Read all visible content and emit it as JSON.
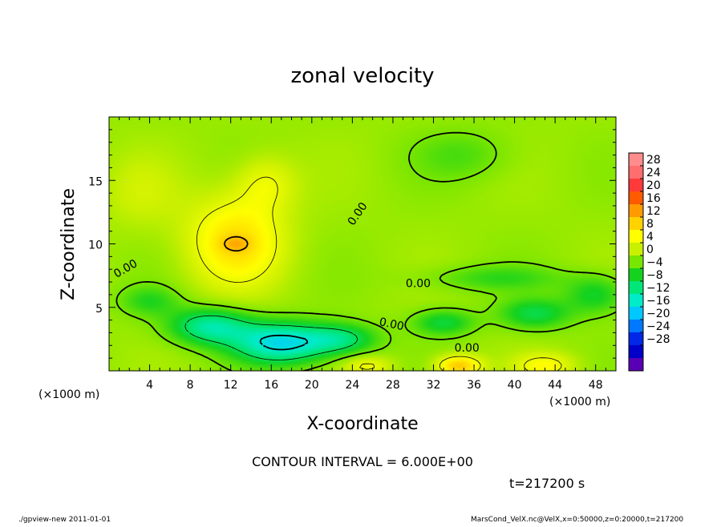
{
  "chart_data": {
    "type": "heatmap",
    "title": "zonal velocity",
    "xlabel": "X-coordinate",
    "ylabel": "Z-coordinate",
    "x_unit": "(×1000 m)",
    "y_unit": "(×1000 m)",
    "xlim": [
      0,
      50
    ],
    "ylim": [
      0,
      20
    ],
    "x_ticks": [
      4,
      8,
      12,
      16,
      20,
      24,
      28,
      32,
      36,
      40,
      44,
      48
    ],
    "y_ticks": [
      5,
      10,
      15
    ],
    "colorbar": {
      "ticks": [
        28,
        24,
        20,
        16,
        12,
        8,
        4,
        0,
        -4,
        -8,
        -12,
        -16,
        -20,
        -24,
        -28
      ],
      "tick_labels": [
        "28",
        "24",
        "20",
        "16",
        "12",
        "8",
        "4",
        "0",
        "−4",
        "−8",
        "−12",
        "−16",
        "−20",
        "−24",
        "−28"
      ],
      "colors": [
        "#ff8c8c",
        "#ff6e6e",
        "#ff3a3a",
        "#ff5a00",
        "#ff9a00",
        "#ffd200",
        "#ffff00",
        "#c8f000",
        "#78e600",
        "#14d21e",
        "#00e678",
        "#00ebc8",
        "#00c8ff",
        "#0078ff",
        "#0028e6",
        "#0000c8",
        "#5a00b4"
      ]
    },
    "contour_interval": "6.000E+00",
    "contour_labels": [
      {
        "text": "0.00",
        "x": 1.8,
        "z": 7.8,
        "angle": -30
      },
      {
        "text": "0.00",
        "x": 24.8,
        "z": 12.2,
        "angle": -55
      },
      {
        "text": "0.00",
        "x": 30.5,
        "z": 6.6,
        "angle": 0
      },
      {
        "text": "0.00",
        "x": 27.8,
        "z": 3.4,
        "angle": 12
      },
      {
        "text": "0.00",
        "x": 35.3,
        "z": 1.5,
        "angle": 0
      }
    ],
    "fields": {
      "background": 1.5,
      "features": [
        {
          "x": 12.5,
          "z": 10.2,
          "sx": 4.8,
          "sz": 3.6,
          "amp": 8.5
        },
        {
          "x": 15.5,
          "z": 14.8,
          "sx": 3.0,
          "sz": 2.2,
          "amp": 4.5
        },
        {
          "x": 12.5,
          "z": 10.0,
          "sx": 1.4,
          "sz": 0.6,
          "amp": 4.0
        },
        {
          "x": 17.0,
          "z": 2.2,
          "sx": 4.8,
          "sz": 1.6,
          "amp": -14.5
        },
        {
          "x": 10.0,
          "z": 3.5,
          "sx": 4.0,
          "sz": 1.4,
          "amp": -11.0
        },
        {
          "x": 23.0,
          "z": 2.5,
          "sx": 3.5,
          "sz": 1.2,
          "amp": -8.0
        },
        {
          "x": 33.0,
          "z": 3.8,
          "sx": 3.0,
          "sz": 1.0,
          "amp": -6.5
        },
        {
          "x": 42.0,
          "z": 4.5,
          "sx": 3.5,
          "sz": 1.2,
          "amp": -7.0
        },
        {
          "x": 48.0,
          "z": 6.0,
          "sx": 3.0,
          "sz": 1.5,
          "amp": -6.0
        },
        {
          "x": 38.0,
          "z": 7.3,
          "sx": 7.0,
          "sz": 1.0,
          "amp": -4.0
        },
        {
          "x": 4.0,
          "z": 5.5,
          "sx": 3.0,
          "sz": 1.2,
          "amp": -4.5
        },
        {
          "x": 34.5,
          "z": 0.4,
          "sx": 2.2,
          "sz": 0.8,
          "amp": 11.0
        },
        {
          "x": 25.5,
          "z": 0.4,
          "sx": 2.5,
          "sz": 0.8,
          "amp": 5.0
        },
        {
          "x": 43.0,
          "z": 0.4,
          "sx": 3.0,
          "sz": 1.0,
          "amp": 6.0
        },
        {
          "x": 35.0,
          "z": 17.0,
          "sx": 5.0,
          "sz": 2.0,
          "amp": -3.0
        },
        {
          "x": 3.0,
          "z": 14.0,
          "sx": 4.0,
          "sz": 3.0,
          "amp": 2.5
        }
      ]
    },
    "time_label": "t=217200 s"
  },
  "footer": {
    "left": "./gpview-new  2011-01-01",
    "right": "MarsCond_VelX.nc@VelX,x=0:50000,z=0:20000,t=217200"
  },
  "contour_text": "CONTOUR INTERVAL = 6.000E+00"
}
